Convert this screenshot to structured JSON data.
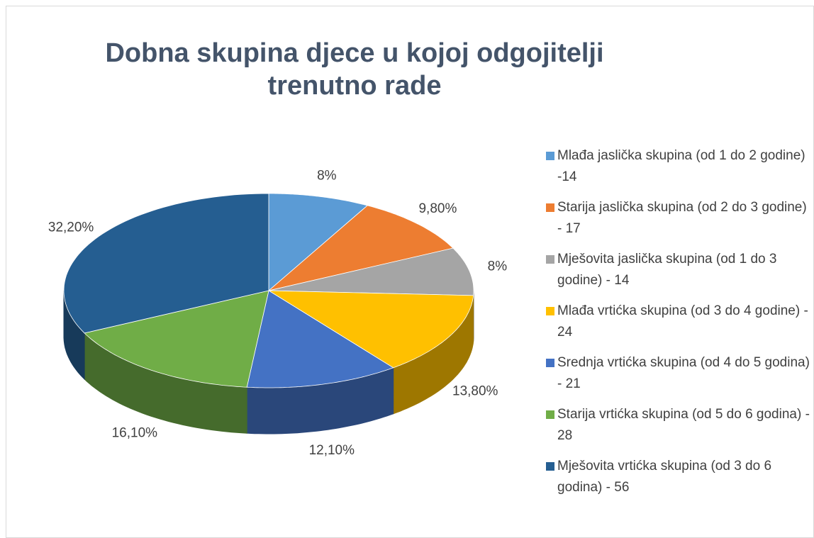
{
  "chart_data": {
    "type": "pie3d",
    "title": "Dobna skupina djece u kojoj odgojitelji trenutno rade",
    "categories": [
      "Mlađa jaslička skupina (od 1 do 2 godine) -14",
      "Starija jaslička skupina (od 2 do 3 godine) - 17",
      "Mješovita jaslička skupina (od 1 do 3 godine) - 14",
      "Mlađa vrtićka skupina (od 3 do 4 godine) - 24",
      "Srednja vrtićka skupina (od 4 do 5 godina) - 21",
      "Starija vrtićka skupina (od 5 do 6 godina) - 28",
      "Mješovita vrtićka skupina (od 3 do 6 godina) - 56"
    ],
    "values": [
      8,
      9.8,
      8,
      13.8,
      12.1,
      16.1,
      32.2
    ],
    "value_labels": [
      "8%",
      "9,80%",
      "8%",
      "13,80%",
      "12,10%",
      "16,10%",
      "32,20%"
    ],
    "colors": [
      "#5b9bd5",
      "#ed7d31",
      "#a5a5a5",
      "#ffc000",
      "#4472c4",
      "#70ad47",
      "#255e91"
    ],
    "legend": "right"
  }
}
